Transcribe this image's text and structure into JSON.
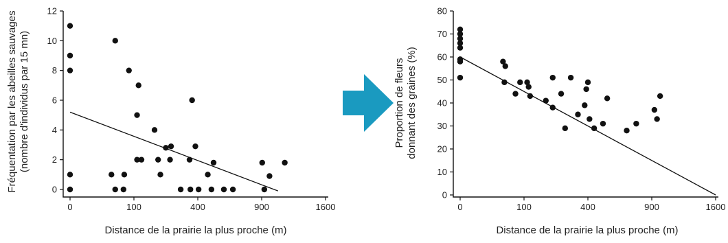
{
  "arrow": {
    "color": "#1a9ac0"
  },
  "chart_data": [
    {
      "type": "scatter",
      "title": "",
      "xlabel": "Distance de la prairie la plus proche (m)",
      "ylabel_lines": [
        "Fréquentation par les abeilles sauvages",
        "(nombre d'individus par 15 mn)"
      ],
      "x_scale": "sqrt",
      "xticks": [
        0,
        100,
        400,
        900,
        1600
      ],
      "xlim": [
        0,
        1600
      ],
      "yticks": [
        0,
        2,
        4,
        6,
        8,
        10,
        12
      ],
      "ylim": [
        0,
        12
      ],
      "points": [
        {
          "x": 0,
          "y": 11
        },
        {
          "x": 0,
          "y": 9
        },
        {
          "x": 0,
          "y": 8
        },
        {
          "x": 0,
          "y": 1
        },
        {
          "x": 0,
          "y": 0
        },
        {
          "x": 50,
          "y": 10
        },
        {
          "x": 42,
          "y": 1
        },
        {
          "x": 50,
          "y": 0
        },
        {
          "x": 85,
          "y": 8
        },
        {
          "x": 72,
          "y": 1
        },
        {
          "x": 70,
          "y": 0
        },
        {
          "x": 115,
          "y": 7
        },
        {
          "x": 110,
          "y": 5
        },
        {
          "x": 110,
          "y": 2
        },
        {
          "x": 125,
          "y": 2
        },
        {
          "x": 175,
          "y": 4
        },
        {
          "x": 190,
          "y": 2
        },
        {
          "x": 200,
          "y": 1
        },
        {
          "x": 225,
          "y": 2.8
        },
        {
          "x": 250,
          "y": 2.9
        },
        {
          "x": 245,
          "y": 2
        },
        {
          "x": 300,
          "y": 0
        },
        {
          "x": 365,
          "y": 6
        },
        {
          "x": 350,
          "y": 2
        },
        {
          "x": 385,
          "y": 2.9
        },
        {
          "x": 355,
          "y": 0
        },
        {
          "x": 405,
          "y": 0
        },
        {
          "x": 465,
          "y": 1
        },
        {
          "x": 505,
          "y": 1.8
        },
        {
          "x": 490,
          "y": 0
        },
        {
          "x": 580,
          "y": 0
        },
        {
          "x": 650,
          "y": 0
        },
        {
          "x": 905,
          "y": 1.8
        },
        {
          "x": 925,
          "y": 0
        },
        {
          "x": 975,
          "y": 0.9
        },
        {
          "x": 1130,
          "y": 1.8
        }
      ],
      "trendline": {
        "x": [
          0,
          1060
        ],
        "y": [
          5.2,
          -0.1
        ]
      }
    },
    {
      "type": "scatter",
      "title": "",
      "xlabel": "Distance de la prairie la plus proche (m)",
      "ylabel_lines": [
        "Proportion de fleurs",
        "donnant des graines (%)"
      ],
      "x_scale": "sqrt",
      "xticks": [
        0,
        100,
        400,
        900,
        1600
      ],
      "xlim": [
        0,
        1600
      ],
      "yticks": [
        0,
        10,
        20,
        30,
        40,
        50,
        60,
        70,
        80
      ],
      "ylim": [
        0,
        80
      ],
      "points": [
        {
          "x": 0,
          "y": 72
        },
        {
          "x": 0,
          "y": 70
        },
        {
          "x": 0,
          "y": 68
        },
        {
          "x": 0,
          "y": 66
        },
        {
          "x": 0,
          "y": 64
        },
        {
          "x": 0,
          "y": 59
        },
        {
          "x": 0,
          "y": 58
        },
        {
          "x": 0,
          "y": 51
        },
        {
          "x": 45,
          "y": 58
        },
        {
          "x": 50,
          "y": 56
        },
        {
          "x": 48,
          "y": 49
        },
        {
          "x": 75,
          "y": 44
        },
        {
          "x": 88,
          "y": 49
        },
        {
          "x": 110,
          "y": 49
        },
        {
          "x": 115,
          "y": 47
        },
        {
          "x": 120,
          "y": 43
        },
        {
          "x": 180,
          "y": 41
        },
        {
          "x": 210,
          "y": 38
        },
        {
          "x": 210,
          "y": 51
        },
        {
          "x": 250,
          "y": 44
        },
        {
          "x": 270,
          "y": 29
        },
        {
          "x": 300,
          "y": 51
        },
        {
          "x": 340,
          "y": 35
        },
        {
          "x": 380,
          "y": 39
        },
        {
          "x": 390,
          "y": 46
        },
        {
          "x": 400,
          "y": 49
        },
        {
          "x": 410,
          "y": 33
        },
        {
          "x": 440,
          "y": 29
        },
        {
          "x": 500,
          "y": 31
        },
        {
          "x": 530,
          "y": 42
        },
        {
          "x": 680,
          "y": 28
        },
        {
          "x": 760,
          "y": 31
        },
        {
          "x": 925,
          "y": 37
        },
        {
          "x": 950,
          "y": 33
        },
        {
          "x": 980,
          "y": 43
        }
      ],
      "trendline": {
        "x": [
          0,
          1600
        ],
        "y": [
          60,
          0
        ]
      }
    }
  ]
}
